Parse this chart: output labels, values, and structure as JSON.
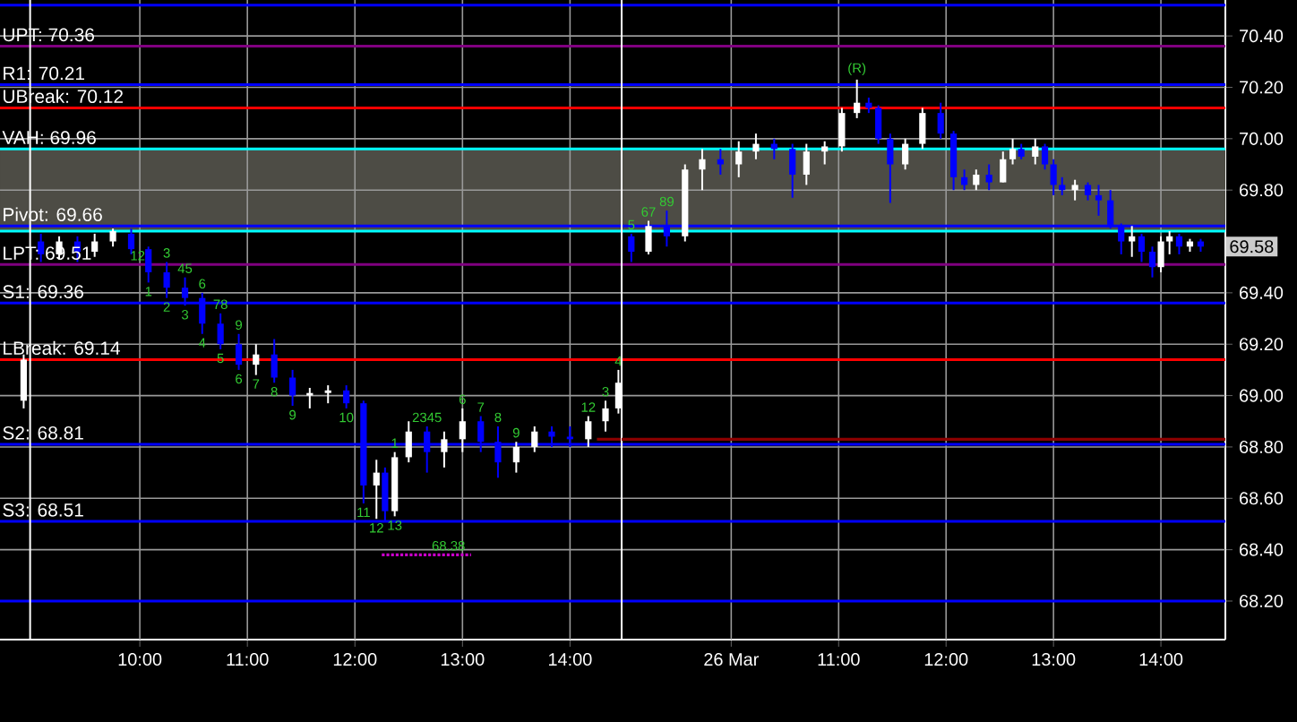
{
  "chart_data": [
    {
      "type": "candlestick",
      "x": [
        8.92,
        9.08,
        9.25,
        9.42,
        9.58,
        9.75,
        9.92,
        10.08,
        10.25,
        10.42,
        10.58,
        10.75,
        10.92,
        11.08,
        11.25,
        11.42,
        11.58,
        11.75,
        11.92,
        12.08,
        12.2,
        12.28,
        12.37,
        12.5,
        12.67,
        12.83,
        13.0,
        13.17,
        13.33,
        13.5,
        13.67,
        13.83,
        14.0,
        14.17,
        14.33,
        14.45
      ],
      "ohlc": [
        [
          68.98,
          69.16,
          68.95,
          69.14
        ],
        [
          69.6,
          69.63,
          69.52,
          69.55
        ],
        [
          69.55,
          69.62,
          69.53,
          69.6
        ],
        [
          69.6,
          69.62,
          69.52,
          69.56
        ],
        [
          69.56,
          69.63,
          69.54,
          69.6
        ],
        [
          69.6,
          69.65,
          69.58,
          69.64
        ],
        [
          69.63,
          69.65,
          69.55,
          69.57
        ],
        [
          69.57,
          69.58,
          69.44,
          69.48
        ],
        [
          69.48,
          69.52,
          69.38,
          69.42
        ],
        [
          69.42,
          69.46,
          69.35,
          69.38
        ],
        [
          69.38,
          69.4,
          69.24,
          69.28
        ],
        [
          69.28,
          69.32,
          69.18,
          69.2
        ],
        [
          69.2,
          69.24,
          69.1,
          69.12
        ],
        [
          69.12,
          69.2,
          69.08,
          69.16
        ],
        [
          69.16,
          69.22,
          69.05,
          69.07
        ],
        [
          69.07,
          69.1,
          68.96,
          69.0
        ],
        [
          69.0,
          69.03,
          68.95,
          69.01
        ],
        [
          69.01,
          69.04,
          68.97,
          69.02
        ],
        [
          69.02,
          69.04,
          68.95,
          68.97
        ],
        [
          68.97,
          68.98,
          68.58,
          68.65
        ],
        [
          68.65,
          68.75,
          68.52,
          68.7
        ],
        [
          68.7,
          68.72,
          68.51,
          68.55
        ],
        [
          68.55,
          68.78,
          68.53,
          68.76
        ],
        [
          68.76,
          68.9,
          68.74,
          68.86
        ],
        [
          68.86,
          68.88,
          68.7,
          68.78
        ],
        [
          68.78,
          68.86,
          68.72,
          68.83
        ],
        [
          68.83,
          68.95,
          68.78,
          68.9
        ],
        [
          68.9,
          68.92,
          68.78,
          68.82
        ],
        [
          68.82,
          68.88,
          68.68,
          68.74
        ],
        [
          68.74,
          68.82,
          68.7,
          68.8
        ],
        [
          68.8,
          68.88,
          68.78,
          68.86
        ],
        [
          68.86,
          68.88,
          68.8,
          68.84
        ],
        [
          68.84,
          68.88,
          68.8,
          68.83
        ],
        [
          68.83,
          68.92,
          68.8,
          68.9
        ],
        [
          68.9,
          68.98,
          68.86,
          68.95
        ],
        [
          68.95,
          69.1,
          68.93,
          69.05
        ]
      ],
      "colors": [
        "#ffffff",
        "#0000ff",
        "#ffffff",
        "#0000ff",
        "#ffffff",
        "#ffffff",
        "#0000ff",
        "#0000ff",
        "#0000ff",
        "#0000ff",
        "#0000ff",
        "#0000ff",
        "#0000ff",
        "#ffffff",
        "#0000ff",
        "#0000ff",
        "#ffffff",
        "#ffffff",
        "#0000ff",
        "#0000ff",
        "#ffffff",
        "#0000ff",
        "#ffffff",
        "#ffffff",
        "#0000ff",
        "#ffffff",
        "#ffffff",
        "#0000ff",
        "#0000ff",
        "#ffffff",
        "#ffffff",
        "#0000ff",
        "#0000ff",
        "#ffffff",
        "#ffffff",
        "#ffffff"
      ],
      "series": [
        {
          "type": "line",
          "color": "#cc00cc",
          "line_style": "dotted",
          "x": [
            12.25,
            13.08
          ],
          "values": [
            68.38,
            68.38
          ]
        },
        {
          "type": "line",
          "color": "#8b0000",
          "line_style": "solid",
          "x": [
            14.25,
            14.48
          ],
          "values": [
            68.83,
            68.83
          ]
        }
      ],
      "xlim": [
        8.7,
        14.48
      ],
      "ylim": [
        68.05,
        70.54
      ],
      "xticks": [
        {
          "value": 10,
          "label": "10:00"
        },
        {
          "value": 11,
          "label": "11:00"
        },
        {
          "value": 12,
          "label": "12:00"
        },
        {
          "value": 13,
          "label": "13:00"
        },
        {
          "value": 14,
          "label": "14:00"
        }
      ],
      "yticks": [
        68.2,
        68.4,
        68.6,
        68.8,
        69.0,
        69.2,
        69.4,
        69.8,
        70.0,
        70.2,
        70.4
      ],
      "tick_labels": "x",
      "grid": true,
      "bands": [
        {
          "axis": "y",
          "from": 69.64,
          "to": 69.96,
          "color": "#4d4c45"
        }
      ],
      "ref_lines": [
        {
          "axis": "y",
          "value": 70.52,
          "color": "#0000ff"
        },
        {
          "axis": "y",
          "value": 70.36,
          "label": "UPT: 70.36",
          "color": "#800080"
        },
        {
          "axis": "y",
          "value": 70.21,
          "label": "R1: 70.21",
          "color": "#0000ff"
        },
        {
          "axis": "y",
          "value": 70.12,
          "label": "UBreak: 70.12",
          "color": "#ff0000"
        },
        {
          "axis": "y",
          "value": 69.96,
          "label": "VAH: 69.96",
          "color": "#00ffff"
        },
        {
          "axis": "y",
          "value": 69.66,
          "label": "Pivot: 69.66",
          "color": "#0000ff"
        },
        {
          "axis": "y",
          "value": 69.64,
          "color": "#00ffff"
        },
        {
          "axis": "y",
          "value": 69.51,
          "label": "LPT: 69.51",
          "color": "#800080"
        },
        {
          "axis": "y",
          "value": 69.36,
          "label": "S1: 69.36",
          "color": "#0000ff"
        },
        {
          "axis": "y",
          "value": 69.14,
          "label": "LBreak: 69.14",
          "color": "#ff0000"
        },
        {
          "axis": "y",
          "value": 68.81,
          "label": "S2: 68.81",
          "color": "#0000ff"
        },
        {
          "axis": "y",
          "value": 68.51,
          "label": "S3: 68.51",
          "color": "#0000ff"
        },
        {
          "axis": "y",
          "value": 68.2,
          "color": "#0000ff"
        },
        {
          "axis": "x",
          "value": 8.98,
          "color": "#ffffff"
        }
      ],
      "annotations": [
        {
          "text": "12",
          "x": 9.98,
          "y": 69.51
        },
        {
          "text": "1",
          "x": 10.08,
          "y": 69.44
        },
        {
          "text": "3",
          "x": 10.25,
          "y": 69.52
        },
        {
          "text": "45",
          "x": 10.42,
          "y": 69.46
        },
        {
          "text": "2",
          "x": 10.25,
          "y": 69.38
        },
        {
          "text": "6",
          "x": 10.58,
          "y": 69.4
        },
        {
          "text": "78",
          "x": 10.75,
          "y": 69.32
        },
        {
          "text": "9",
          "x": 10.92,
          "y": 69.24
        },
        {
          "text": "3",
          "x": 10.42,
          "y": 69.35
        },
        {
          "text": "4",
          "x": 10.58,
          "y": 69.24
        },
        {
          "text": "5",
          "x": 10.75,
          "y": 69.18
        },
        {
          "text": "6",
          "x": 10.92,
          "y": 69.1
        },
        {
          "text": "7",
          "x": 11.08,
          "y": 69.08
        },
        {
          "text": "8",
          "x": 11.25,
          "y": 69.05
        },
        {
          "text": "9",
          "x": 11.42,
          "y": 68.96
        },
        {
          "text": "10",
          "x": 11.92,
          "y": 68.95
        },
        {
          "text": "11",
          "x": 12.08,
          "y": 68.58
        },
        {
          "text": "12",
          "x": 12.2,
          "y": 68.52
        },
        {
          "text": "13",
          "x": 12.37,
          "y": 68.53
        },
        {
          "text": "1",
          "x": 12.37,
          "y": 68.78
        },
        {
          "text": "2345",
          "x": 12.67,
          "y": 68.88
        },
        {
          "text": "6",
          "x": 13.0,
          "y": 68.95
        },
        {
          "text": "7",
          "x": 13.17,
          "y": 68.92
        },
        {
          "text": "8",
          "x": 13.33,
          "y": 68.88
        },
        {
          "text": "9",
          "x": 13.5,
          "y": 68.82
        },
        {
          "text": "12",
          "x": 14.17,
          "y": 68.92
        },
        {
          "text": "3",
          "x": 14.33,
          "y": 68.98
        },
        {
          "text": "4",
          "x": 14.45,
          "y": 69.1
        },
        {
          "text": "68.38",
          "x": 12.87,
          "y": 68.38
        }
      ]
    },
    {
      "type": "candlestick",
      "x": [
        9.07,
        9.23,
        9.4,
        9.57,
        9.73,
        9.9,
        10.07,
        10.23,
        10.4,
        10.57,
        10.7,
        10.87,
        11.03,
        11.17,
        11.28,
        11.37,
        11.48,
        11.62,
        11.78,
        11.95,
        12.07,
        12.17,
        12.28,
        12.4,
        12.53,
        12.62,
        12.7,
        12.83,
        12.92,
        13.0,
        13.08,
        13.2,
        13.32,
        13.42,
        13.53,
        13.63,
        13.73,
        13.82,
        13.92,
        14.0,
        14.08,
        14.17,
        14.27,
        14.37
      ],
      "ohlc": [
        [
          69.62,
          69.63,
          69.52,
          69.56
        ],
        [
          69.56,
          69.68,
          69.55,
          69.66
        ],
        [
          69.66,
          69.72,
          69.58,
          69.62
        ],
        [
          69.62,
          69.9,
          69.6,
          69.88
        ],
        [
          69.88,
          69.96,
          69.8,
          69.92
        ],
        [
          69.92,
          69.96,
          69.86,
          69.9
        ],
        [
          69.9,
          69.99,
          69.85,
          69.95
        ],
        [
          69.95,
          70.02,
          69.92,
          69.98
        ],
        [
          69.98,
          70.0,
          69.92,
          69.96
        ],
        [
          69.96,
          69.98,
          69.77,
          69.86
        ],
        [
          69.86,
          69.98,
          69.82,
          69.95
        ],
        [
          69.95,
          69.99,
          69.9,
          69.97
        ],
        [
          69.97,
          70.12,
          69.95,
          70.1
        ],
        [
          70.1,
          70.23,
          70.08,
          70.14
        ],
        [
          70.14,
          70.16,
          70.1,
          70.12
        ],
        [
          70.12,
          70.13,
          69.98,
          70.0
        ],
        [
          70.0,
          70.02,
          69.75,
          69.9
        ],
        [
          69.9,
          70.0,
          69.88,
          69.98
        ],
        [
          69.98,
          70.12,
          69.96,
          70.1
        ],
        [
          70.1,
          70.14,
          70.0,
          70.02
        ],
        [
          70.02,
          70.03,
          69.8,
          69.85
        ],
        [
          69.85,
          69.88,
          69.8,
          69.82
        ],
        [
          69.82,
          69.88,
          69.8,
          69.86
        ],
        [
          69.86,
          69.9,
          69.8,
          69.83
        ],
        [
          69.83,
          69.95,
          69.83,
          69.92
        ],
        [
          69.92,
          70.0,
          69.9,
          69.96
        ],
        [
          69.96,
          69.98,
          69.92,
          69.93
        ],
        [
          69.93,
          70.0,
          69.9,
          69.97
        ],
        [
          69.97,
          69.98,
          69.88,
          69.9
        ],
        [
          69.9,
          69.92,
          69.78,
          69.82
        ],
        [
          69.82,
          69.85,
          69.78,
          69.8
        ],
        [
          69.8,
          69.84,
          69.76,
          69.82
        ],
        [
          69.82,
          69.83,
          69.76,
          69.78
        ],
        [
          69.78,
          69.82,
          69.7,
          69.76
        ],
        [
          69.76,
          69.8,
          69.65,
          69.66
        ],
        [
          69.66,
          69.67,
          69.55,
          69.6
        ],
        [
          69.6,
          69.66,
          69.54,
          69.62
        ],
        [
          69.62,
          69.63,
          69.52,
          69.56
        ],
        [
          69.56,
          69.58,
          69.46,
          69.5
        ],
        [
          69.5,
          69.62,
          69.48,
          69.6
        ],
        [
          69.6,
          69.64,
          69.55,
          69.62
        ],
        [
          69.62,
          69.63,
          69.55,
          69.58
        ],
        [
          69.58,
          69.61,
          69.56,
          69.6
        ],
        [
          69.6,
          69.61,
          69.56,
          69.58
        ]
      ],
      "colors": [
        "#0000ff",
        "#ffffff",
        "#0000ff",
        "#ffffff",
        "#ffffff",
        "#0000ff",
        "#ffffff",
        "#ffffff",
        "#0000ff",
        "#0000ff",
        "#ffffff",
        "#ffffff",
        "#ffffff",
        "#ffffff",
        "#0000ff",
        "#0000ff",
        "#0000ff",
        "#ffffff",
        "#ffffff",
        "#0000ff",
        "#0000ff",
        "#0000ff",
        "#ffffff",
        "#0000ff",
        "#ffffff",
        "#ffffff",
        "#0000ff",
        "#ffffff",
        "#0000ff",
        "#0000ff",
        "#0000ff",
        "#ffffff",
        "#0000ff",
        "#0000ff",
        "#0000ff",
        "#0000ff",
        "#ffffff",
        "#0000ff",
        "#0000ff",
        "#ffffff",
        "#ffffff",
        "#0000ff",
        "#ffffff",
        "#0000ff"
      ],
      "series": [
        {
          "type": "line",
          "color": "#8b0000",
          "line_style": "solid",
          "x": [
            8.98,
            14.6
          ],
          "values": [
            68.83,
            68.83
          ]
        }
      ],
      "xlim": [
        8.98,
        14.6
      ],
      "ylim": [
        68.05,
        70.54
      ],
      "xticks": [
        {
          "value": 10,
          "label": "26 Mar"
        },
        {
          "value": 11,
          "label": "11:00"
        },
        {
          "value": 12,
          "label": "12:00"
        },
        {
          "value": 13,
          "label": "13:00"
        },
        {
          "value": 14,
          "label": "14:00"
        }
      ],
      "yticks": [
        {
          "value": 68.2,
          "label": "68.20"
        },
        {
          "value": 68.4,
          "label": "68.40"
        },
        {
          "value": 68.6,
          "label": "68.60"
        },
        {
          "value": 68.8,
          "label": "68.80"
        },
        {
          "value": 69.0,
          "label": "69.00"
        },
        {
          "value": 69.2,
          "label": "69.20"
        },
        {
          "value": 69.4,
          "label": "69.40"
        },
        {
          "value": 69.8,
          "label": "69.80"
        },
        {
          "value": 70.0,
          "label": "70.00"
        },
        {
          "value": 70.2,
          "label": "70.20"
        },
        {
          "value": 70.4,
          "label": "70.40"
        }
      ],
      "grid": true,
      "bands": [
        {
          "axis": "y",
          "from": 69.64,
          "to": 69.96,
          "color": "#4d4c45"
        }
      ],
      "ref_lines": [
        {
          "axis": "y",
          "value": 70.52,
          "color": "#0000ff"
        },
        {
          "axis": "y",
          "value": 70.36,
          "color": "#800080"
        },
        {
          "axis": "y",
          "value": 70.21,
          "color": "#0000ff"
        },
        {
          "axis": "y",
          "value": 70.12,
          "color": "#ff0000"
        },
        {
          "axis": "y",
          "value": 69.96,
          "color": "#00ffff"
        },
        {
          "axis": "y",
          "value": 69.66,
          "color": "#0000ff"
        },
        {
          "axis": "y",
          "value": 69.64,
          "color": "#00ffff"
        },
        {
          "axis": "y",
          "value": 69.51,
          "color": "#800080"
        },
        {
          "axis": "y",
          "value": 69.36,
          "color": "#0000ff"
        },
        {
          "axis": "y",
          "value": 69.14,
          "color": "#ff0000"
        },
        {
          "axis": "y",
          "value": 68.81,
          "color": "#0000ff"
        },
        {
          "axis": "y",
          "value": 68.51,
          "color": "#0000ff"
        },
        {
          "axis": "y",
          "value": 68.2,
          "color": "#0000ff"
        },
        {
          "axis": "x",
          "value": 8.98,
          "color": "#ffffff"
        }
      ],
      "annotations": [
        {
          "text": "5",
          "x": 9.07,
          "y": 69.63
        },
        {
          "text": "67",
          "x": 9.23,
          "y": 69.68
        },
        {
          "text": "89",
          "x": 9.4,
          "y": 69.72
        },
        {
          "text": "(R)",
          "x": 11.17,
          "y": 70.23
        },
        {
          "text": "69.58",
          "x": 14.37,
          "y": 69.58
        }
      ]
    }
  ]
}
